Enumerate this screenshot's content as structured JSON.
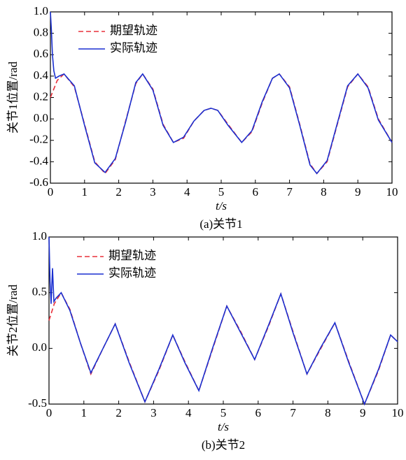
{
  "chart_data": [
    {
      "type": "line",
      "y_label": "关节1位置/rad",
      "x_label": "t/s",
      "caption": "(a)关节1",
      "xlim": [
        0,
        10
      ],
      "xticks": [
        0,
        1,
        2,
        3,
        4,
        5,
        6,
        7,
        8,
        9,
        10
      ],
      "ylim": [
        -0.6,
        1
      ],
      "yticks": [
        -0.6,
        -0.4,
        -0.2,
        {
          "value": 0,
          "label": "0.0"
        },
        0.2,
        0.4,
        0.6,
        0.8,
        {
          "value": 1,
          "label": "1.0"
        }
      ],
      "series": [
        {
          "name": "期望轨迹",
          "color": "#e8303a",
          "linestyle": "dashed",
          "x": [
            0,
            0.2,
            0.4,
            0.7,
            1.0,
            1.3,
            1.6,
            1.9,
            2.2,
            2.5,
            2.7,
            3.0,
            3.3,
            3.6,
            3.9,
            4.2,
            4.5,
            4.7,
            4.9,
            5.2,
            5.6,
            5.9,
            6.2,
            6.5,
            6.7,
            7.0,
            7.3,
            7.6,
            7.8,
            8.1,
            8.4,
            8.7,
            9.0,
            9.3,
            9.6,
            10
          ],
          "values": [
            0.2,
            0.36,
            0.42,
            0.3,
            -0.05,
            -0.4,
            -0.51,
            -0.38,
            -0.02,
            0.33,
            0.42,
            0.28,
            -0.05,
            -0.22,
            -0.18,
            -0.02,
            0.08,
            0.1,
            0.08,
            -0.05,
            -0.22,
            -0.12,
            0.15,
            0.38,
            0.42,
            0.3,
            -0.05,
            -0.42,
            -0.51,
            -0.4,
            -0.05,
            0.3,
            0.42,
            0.3,
            0.0,
            -0.22
          ]
        },
        {
          "name": "实际轨迹",
          "color": "#1a2fd0",
          "linestyle": "solid",
          "x": [
            0,
            0.03,
            0.06,
            0.1,
            0.15,
            0.25,
            0.4,
            0.7,
            1.0,
            1.3,
            1.6,
            1.9,
            2.2,
            2.5,
            2.7,
            3.0,
            3.3,
            3.6,
            3.9,
            4.2,
            4.5,
            4.7,
            4.9,
            5.2,
            5.6,
            5.9,
            6.2,
            6.5,
            6.7,
            7.0,
            7.3,
            7.6,
            7.8,
            8.1,
            8.4,
            8.7,
            9.0,
            9.3,
            9.6,
            10
          ],
          "values": [
            1.0,
            0.82,
            0.6,
            0.45,
            0.38,
            0.4,
            0.42,
            0.31,
            -0.06,
            -0.41,
            -0.5,
            -0.37,
            -0.03,
            0.34,
            0.42,
            0.27,
            -0.06,
            -0.22,
            -0.17,
            -0.02,
            0.08,
            0.1,
            0.08,
            -0.06,
            -0.22,
            -0.11,
            0.16,
            0.38,
            0.42,
            0.29,
            -0.06,
            -0.43,
            -0.51,
            -0.39,
            -0.04,
            0.31,
            0.42,
            0.29,
            -0.01,
            -0.22
          ]
        }
      ]
    },
    {
      "type": "line",
      "y_label": "关节2位置/rad",
      "x_label": "t/s",
      "caption": "(b)关节2",
      "xlim": [
        0,
        10
      ],
      "xticks": [
        0,
        1,
        2,
        3,
        4,
        5,
        6,
        7,
        8,
        9,
        10
      ],
      "ylim": [
        -0.5,
        1
      ],
      "yticks": [
        -0.5,
        {
          "value": 0,
          "label": "0.0"
        },
        0.5,
        {
          "value": 1,
          "label": "1.0"
        }
      ],
      "series": [
        {
          "name": "期望轨迹",
          "color": "#e8303a",
          "linestyle": "dashed",
          "x": [
            0,
            0.15,
            0.35,
            0.6,
            0.9,
            1.2,
            1.55,
            1.9,
            2.3,
            2.75,
            3.15,
            3.55,
            3.9,
            4.3,
            4.7,
            5.1,
            5.5,
            5.9,
            6.3,
            6.65,
            7.0,
            7.4,
            7.8,
            8.2,
            8.6,
            9.05,
            9.45,
            9.8,
            10
          ],
          "values": [
            0.25,
            0.4,
            0.5,
            0.35,
            0.05,
            -0.23,
            0.0,
            0.22,
            -0.12,
            -0.48,
            -0.2,
            0.12,
            -0.12,
            -0.38,
            0.0,
            0.38,
            0.15,
            -0.1,
            0.2,
            0.49,
            0.15,
            -0.23,
            0.0,
            0.23,
            -0.12,
            -0.5,
            -0.2,
            0.12,
            0.06
          ]
        },
        {
          "name": "实际轨迹",
          "color": "#1a2fd0",
          "linestyle": "solid",
          "x": [
            0,
            0.03,
            0.06,
            0.1,
            0.14,
            0.2,
            0.35,
            0.6,
            0.9,
            1.2,
            1.55,
            1.9,
            2.3,
            2.75,
            3.15,
            3.55,
            3.9,
            4.3,
            4.7,
            5.1,
            5.5,
            5.9,
            6.3,
            6.65,
            7.0,
            7.4,
            7.8,
            8.2,
            8.6,
            9.05,
            9.45,
            9.8,
            10
          ],
          "values": [
            1.0,
            0.6,
            0.4,
            0.72,
            0.42,
            0.45,
            0.5,
            0.34,
            0.05,
            -0.22,
            0.0,
            0.22,
            -0.13,
            -0.48,
            -0.19,
            0.12,
            -0.13,
            -0.38,
            0.01,
            0.38,
            0.14,
            -0.1,
            0.21,
            0.49,
            0.14,
            -0.23,
            0.01,
            0.23,
            -0.13,
            -0.5,
            -0.19,
            0.12,
            0.06
          ]
        }
      ]
    }
  ]
}
